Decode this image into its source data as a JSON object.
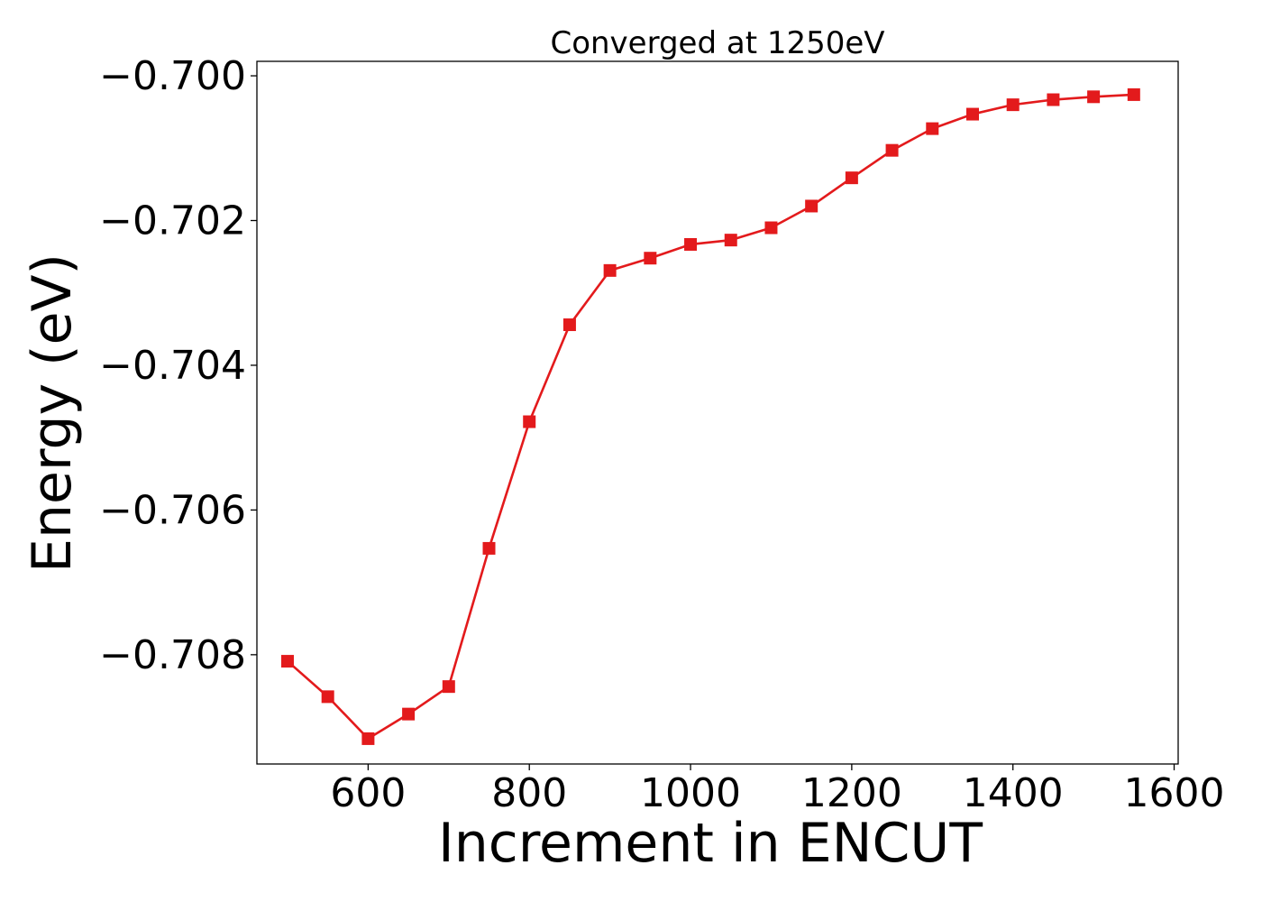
{
  "chart_data": {
    "type": "line",
    "title": "Converged at 1250eV",
    "xlabel": "Increment in ENCUT",
    "ylabel": "Energy (eV)",
    "xlim": [
      462,
      1605
    ],
    "ylim": [
      -0.70951,
      -0.6998
    ],
    "xticks": [
      600,
      800,
      1000,
      1200,
      1400,
      1600
    ],
    "xtick_labels": [
      "600",
      "800",
      "1000",
      "1200",
      "1400",
      "1600"
    ],
    "yticks": [
      -0.7,
      -0.702,
      -0.704,
      -0.706,
      -0.708
    ],
    "ytick_labels": [
      "−0.700",
      "−0.702",
      "−0.704",
      "−0.706",
      "−0.708"
    ],
    "grid": false,
    "series": [
      {
        "color": "#e31a1c",
        "marker": "square",
        "x": [
          500,
          550,
          600,
          650,
          700,
          750,
          800,
          850,
          900,
          950,
          1000,
          1050,
          1100,
          1150,
          1200,
          1250,
          1300,
          1350,
          1400,
          1450,
          1500,
          1550
        ],
        "y": [
          -0.70809,
          -0.70858,
          -0.70916,
          -0.70882,
          -0.70844,
          -0.70653,
          -0.70478,
          -0.70344,
          -0.70269,
          -0.70252,
          -0.70233,
          -0.70227,
          -0.7021,
          -0.7018,
          -0.70141,
          -0.70103,
          -0.70073,
          -0.70053,
          -0.7004,
          -0.70033,
          -0.70029,
          -0.70026
        ]
      }
    ]
  }
}
